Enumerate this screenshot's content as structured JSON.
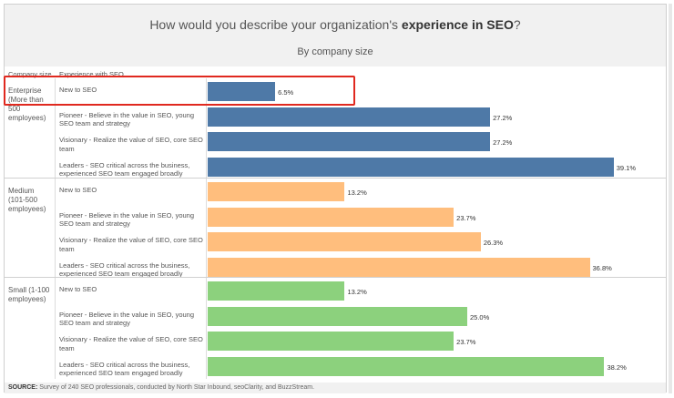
{
  "title": {
    "prefix": "How would you describe your organization's ",
    "bold": "experience in SEO",
    "suffix": "?"
  },
  "subtitle": "By company size",
  "headers": {
    "company_size": "Company size",
    "experience": "Experience with SEO"
  },
  "source": {
    "label": "SOURCE:",
    "text": " Survey of 240 SEO professionals, conducted by North Star Inbound, seoClarity, and BuzzStream."
  },
  "colors": {
    "Enterprise": "#4e79a7",
    "Medium": "#ffbe7d",
    "Small": "#8cd17d",
    "highlight": "#e0291f"
  },
  "chart_data": {
    "type": "bar",
    "orientation": "horizontal",
    "title": "How would you describe your organization's experience in SEO?",
    "subtitle": "By company size",
    "xlim": [
      0,
      40
    ],
    "categories": [
      "New to SEO",
      "Pioneer - Believe in the value in SEO, young SEO team and strategy",
      "Visionary - Realize the value of SEO, core SEO team",
      "Leaders - SEO critical across the business, experienced SEO team engaged broadly"
    ],
    "series": [
      {
        "name": "Enterprise (More than 500 employees)",
        "values": [
          6.5,
          27.2,
          27.2,
          39.1
        ]
      },
      {
        "name": "Medium (101-500 employees)",
        "values": [
          13.2,
          23.7,
          26.3,
          36.8
        ]
      },
      {
        "name": "Small (1-100 employees)",
        "values": [
          13.2,
          25.0,
          23.7,
          38.2
        ]
      }
    ],
    "value_labels": [
      [
        "6.5%",
        "27.2%",
        "27.2%",
        "39.1%"
      ],
      [
        "13.2%",
        "23.7%",
        "26.3%",
        "36.8%"
      ],
      [
        "13.2%",
        "25.0%",
        "23.7%",
        "38.2%"
      ]
    ]
  }
}
